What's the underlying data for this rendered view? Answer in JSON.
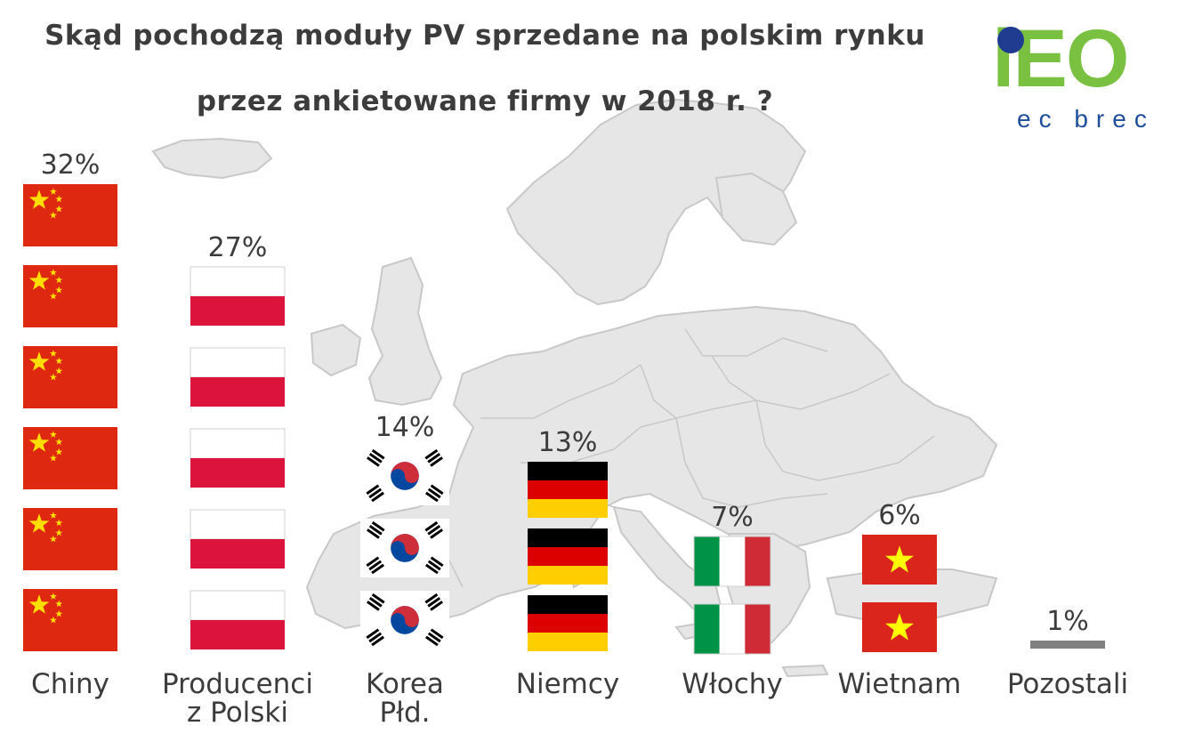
{
  "title_line1": "Skąd pochodzą moduły PV sprzedane na polskim rynku",
  "title_line2": "przez ankietowane firmy w 2018 r. ?",
  "logo": {
    "word": "iEO",
    "sub": "ec brec",
    "green": "#7ac142",
    "blue": "#1f3c91"
  },
  "chart_data": {
    "type": "bar",
    "title": "Skąd pochodzą moduły PV sprzedane na polskim rynku przez ankietowane firmy w 2018 r. ?",
    "unit": "%",
    "categories": [
      {
        "name": "Chiny",
        "label_lines": [
          "Chiny"
        ],
        "value": 32,
        "value_label": "32%",
        "flag": "china",
        "flag_count": 6
      },
      {
        "name": "Producenci z Polski",
        "label_lines": [
          "Producenci",
          "z Polski"
        ],
        "value": 27,
        "value_label": "27%",
        "flag": "poland",
        "flag_count": 5
      },
      {
        "name": "Korea Płd.",
        "label_lines": [
          "Korea",
          "Płd."
        ],
        "value": 14,
        "value_label": "14%",
        "flag": "south-korea",
        "flag_count": 3
      },
      {
        "name": "Niemcy",
        "label_lines": [
          "Niemcy"
        ],
        "value": 13,
        "value_label": "13%",
        "flag": "germany",
        "flag_count": 3
      },
      {
        "name": "Włochy",
        "label_lines": [
          "Włochy"
        ],
        "value": 7,
        "value_label": "7%",
        "flag": "italy",
        "flag_count": 2
      },
      {
        "name": "Wietnam",
        "label_lines": [
          "Wietnam"
        ],
        "value": 6,
        "value_label": "6%",
        "flag": "vietnam",
        "flag_count": 2
      },
      {
        "name": "Pozostali",
        "label_lines": [
          "Pozostali"
        ],
        "value": 1,
        "value_label": "1%",
        "flag": "none",
        "flag_count": 0
      }
    ]
  },
  "colors": {
    "map_fill": "#e6e6e6",
    "map_stroke": "#c8c8c8",
    "text": "#3c3c3c",
    "china_red": "#de2910",
    "china_yellow": "#ffde00",
    "poland_red": "#dc143c",
    "germany_black": "#000000",
    "germany_red": "#dd0000",
    "germany_gold": "#ffce00",
    "italy_green": "#009246",
    "italy_red": "#ce2b37",
    "korea_red": "#cd2e3a",
    "korea_blue": "#0047a0",
    "vietnam_red": "#da251d",
    "vietnam_star": "#ffff00",
    "other_bar": "#808080"
  }
}
